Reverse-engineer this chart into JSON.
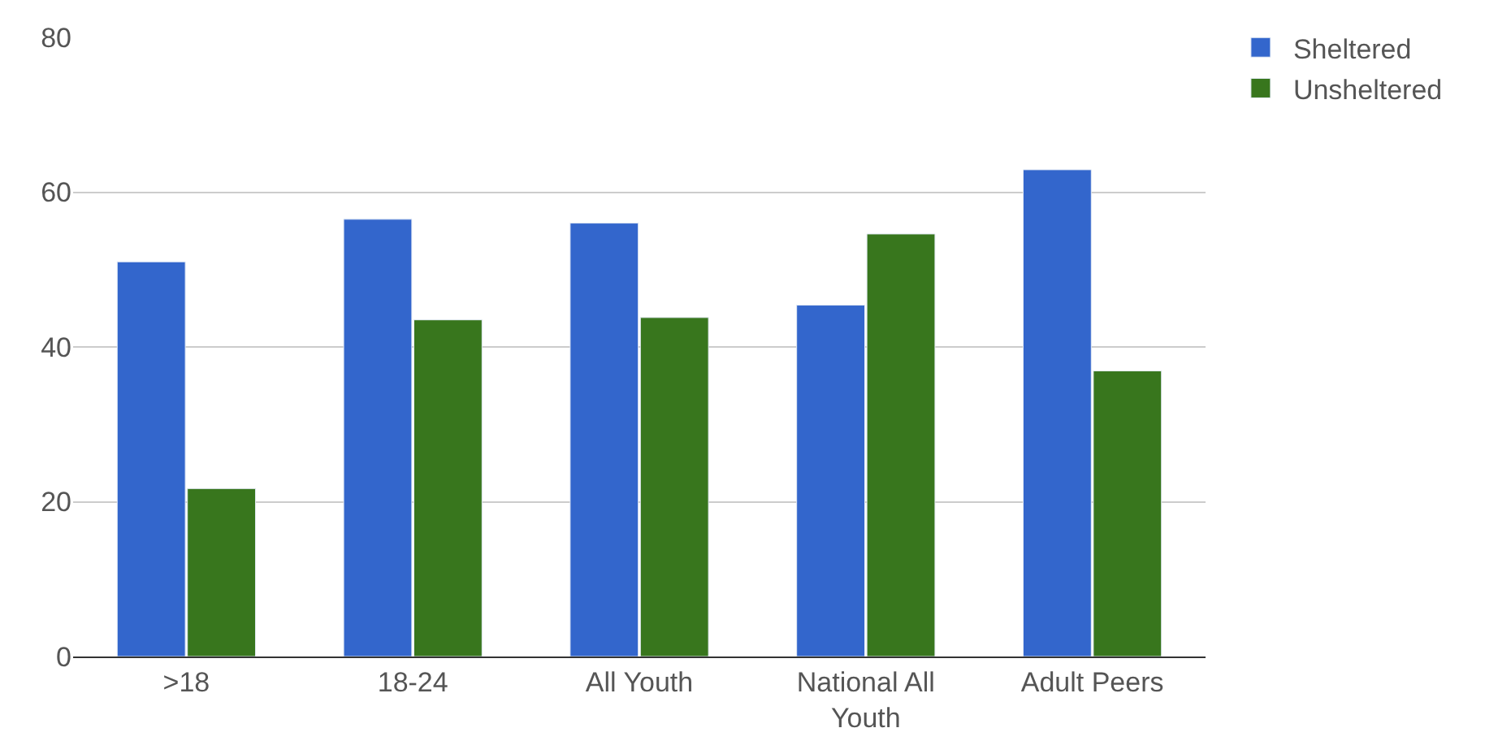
{
  "chart_data": {
    "type": "bar",
    "categories": [
      ">18",
      "18-24",
      "All Youth",
      "National All Youth",
      "Adult Peers"
    ],
    "series": [
      {
        "name": "Sheltered",
        "color": "#3366cc",
        "values": [
          51.0,
          56.5,
          56.0,
          45.4,
          62.9
        ]
      },
      {
        "name": "Unsheltered",
        "color": "#38761d",
        "values": [
          21.7,
          43.5,
          43.8,
          54.6,
          36.9
        ]
      }
    ],
    "ylim": [
      0,
      80
    ],
    "yticks": [
      0,
      20,
      40,
      60,
      80
    ],
    "grid": "y",
    "legend": "top right"
  }
}
